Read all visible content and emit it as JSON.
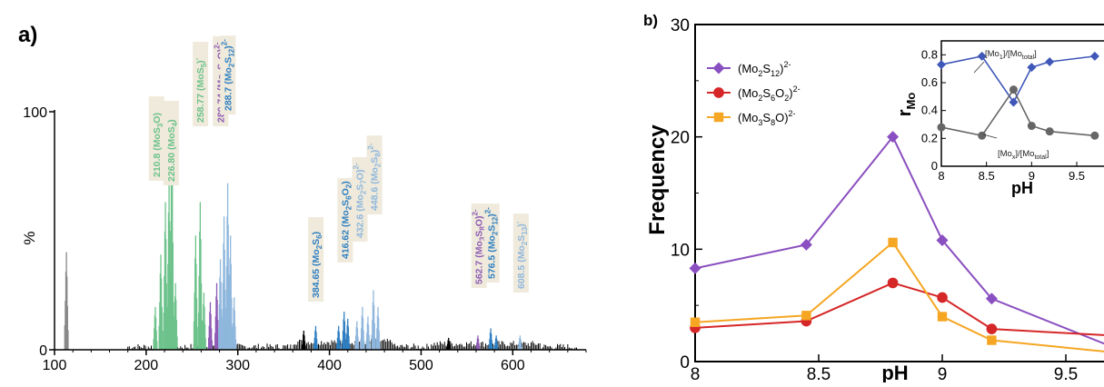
{
  "chart_data": [
    {
      "type": "bar",
      "panel_label": "a)",
      "title": "",
      "xlabel": "",
      "ylabel": "%",
      "xlim": [
        100,
        680
      ],
      "ylim": [
        0,
        100
      ],
      "x_ticks": [
        100,
        200,
        300,
        400,
        500,
        600
      ],
      "y_ticks": [
        0,
        100
      ],
      "colors": {
        "green": "#6cc28a",
        "purple": "#8e5bb5",
        "blue": "#2f7fc1",
        "light_blue": "#8fb7dd",
        "black": "#000000",
        "gray": "#888888"
      },
      "peaks": [
        {
          "x": 113,
          "y": 41,
          "color": "gray"
        },
        {
          "x": 210,
          "y": 18,
          "color": "green"
        },
        {
          "x": 216,
          "y": 40,
          "color": "green"
        },
        {
          "x": 221,
          "y": 62,
          "color": "green"
        },
        {
          "x": 225,
          "y": 72,
          "color": "green"
        },
        {
          "x": 228,
          "y": 100,
          "color": "green"
        },
        {
          "x": 232,
          "y": 28,
          "color": "green"
        },
        {
          "x": 254,
          "y": 48,
          "color": "green"
        },
        {
          "x": 259,
          "y": 62,
          "color": "green"
        },
        {
          "x": 263,
          "y": 24,
          "color": "green"
        },
        {
          "x": 270,
          "y": 20,
          "color": "purple"
        },
        {
          "x": 277,
          "y": 28,
          "color": "purple"
        },
        {
          "x": 281,
          "y": 38,
          "color": "light_blue"
        },
        {
          "x": 285,
          "y": 56,
          "color": "light_blue"
        },
        {
          "x": 289,
          "y": 70,
          "color": "light_blue"
        },
        {
          "x": 292,
          "y": 48,
          "color": "light_blue"
        },
        {
          "x": 296,
          "y": 22,
          "color": "light_blue"
        },
        {
          "x": 372,
          "y": 8,
          "color": "black"
        },
        {
          "x": 385,
          "y": 10,
          "color": "blue"
        },
        {
          "x": 410,
          "y": 10,
          "color": "blue"
        },
        {
          "x": 416,
          "y": 16,
          "color": "blue"
        },
        {
          "x": 420,
          "y": 13,
          "color": "blue"
        },
        {
          "x": 430,
          "y": 12,
          "color": "light_blue"
        },
        {
          "x": 436,
          "y": 18,
          "color": "light_blue"
        },
        {
          "x": 442,
          "y": 14,
          "color": "light_blue"
        },
        {
          "x": 448,
          "y": 25,
          "color": "light_blue"
        },
        {
          "x": 453,
          "y": 18,
          "color": "light_blue"
        },
        {
          "x": 530,
          "y": 5,
          "color": "black"
        },
        {
          "x": 562,
          "y": 6,
          "color": "purple"
        },
        {
          "x": 576,
          "y": 9,
          "color": "blue"
        },
        {
          "x": 582,
          "y": 6,
          "color": "blue"
        },
        {
          "x": 608,
          "y": 6,
          "color": "light_blue"
        }
      ],
      "annotations": [
        {
          "x": 210.8,
          "color": "green",
          "label_value": "210.8",
          "label_species": "(MoS",
          "sub": "3",
          "tail": "O)",
          "sup": ""
        },
        {
          "x": 226.8,
          "color": "green",
          "label_value": "226.80",
          "label_species": "(MoS",
          "sub": "4",
          "tail": ")",
          "sup": ""
        },
        {
          "x": 258.77,
          "color": "green",
          "label_value": "258.77",
          "label_species": "(MoS",
          "sub": "5",
          "tail": ")",
          "sup": "-"
        },
        {
          "x": 280.74,
          "color": "purple",
          "label_value": "280.74",
          "label_species": "(Mo",
          "sub": "2",
          "tail": "S",
          "sub2": "8",
          "tail2": "O)",
          "sup": "2-"
        },
        {
          "x": 288.7,
          "color": "blue",
          "label_value": "288.7",
          "label_species": "(Mo",
          "sub": "2",
          "tail": "S",
          "sub2": "12",
          "tail2": ")",
          "sup": "2-"
        },
        {
          "x": 384.65,
          "color": "blue",
          "label_value": "384.65",
          "label_species": "(Mo",
          "sub": "2",
          "tail": "S",
          "sub2": "6",
          "tail2": ")",
          "sup": ""
        },
        {
          "x": 416.62,
          "color": "blue",
          "label_value": "416.62",
          "label_species": "(Mo",
          "sub": "2",
          "tail": "S",
          "sub2": "6",
          "tail2": "O",
          "sub3": "2",
          "tail3": ")",
          "sup": ""
        },
        {
          "x": 432.6,
          "color": "light_blue",
          "label_value": "432.6",
          "label_species": "(Mo",
          "sub": "2",
          "tail": "S",
          "sub2": "7",
          "tail2": "O)",
          "sup": "2-"
        },
        {
          "x": 448.6,
          "color": "light_blue",
          "label_value": "448.6",
          "label_species": "(Mo",
          "sub": "2",
          "tail": "S",
          "sub2": "8",
          "tail2": ")",
          "sup": "2-"
        },
        {
          "x": 562.7,
          "color": "purple",
          "label_value": "562.7",
          "label_species": "(Mo",
          "sub": "3",
          "tail": "S",
          "sub2": "8",
          "tail2": "O)",
          "sup": "2-"
        },
        {
          "x": 576.5,
          "color": "blue",
          "label_value": "576.5",
          "label_species": "(Mo",
          "sub": "2",
          "tail": "S",
          "sub2": "12",
          "tail2": ")",
          "sup": "2-"
        },
        {
          "x": 608.5,
          "color": "light_blue",
          "label_value": "608.5",
          "label_species": "(Mo",
          "sub": "2",
          "tail": "S",
          "sub2": "13",
          "tail2": ")",
          "sup": "-"
        }
      ]
    },
    {
      "type": "line",
      "panel_label": "b)",
      "title": "",
      "xlabel": "pH",
      "ylabel": "Frequency",
      "xlim": [
        8,
        9.7
      ],
      "ylim": [
        0,
        30
      ],
      "x_ticks": [
        8,
        8.5,
        9,
        9.5
      ],
      "y_ticks": [
        0,
        10,
        20,
        30
      ],
      "x": [
        8,
        8.45,
        8.8,
        9,
        9.2,
        9.7
      ],
      "series": [
        {
          "name_main": "(Mo",
          "name_sub1": "2",
          "name_mid": "S",
          "name_sub2": "12",
          "name_tail": ")",
          "name_sup": "2-",
          "color": "#8a4fc0",
          "marker": "diamond",
          "values": [
            8.3,
            10.4,
            20.0,
            10.8,
            5.6,
            1.2
          ]
        },
        {
          "name_main": "(Mo",
          "name_sub1": "2",
          "name_mid": "S",
          "name_sub2": "6",
          "name_tail": "O",
          "name_sub3": "2",
          "name_tail2": ")",
          "name_sup": "2-",
          "color": "#d62728",
          "marker": "circle",
          "values": [
            3.0,
            3.6,
            7.0,
            5.7,
            2.9,
            2.3
          ]
        },
        {
          "name_main": "(Mo",
          "name_sub1": "3",
          "name_mid": "S",
          "name_sub2": "8",
          "name_tail": "O)",
          "name_sup": "2-",
          "color": "#f5a623",
          "marker": "square",
          "values": [
            3.5,
            4.1,
            10.6,
            4.0,
            1.9,
            0.8
          ]
        }
      ],
      "legend_position": "top-left",
      "inset": {
        "xlabel": "pH",
        "ylabel_main": "r",
        "ylabel_sub": "Mo",
        "xlim": [
          8,
          9.7
        ],
        "ylim": [
          0,
          0.9
        ],
        "x_ticks": [
          8,
          8.5,
          9,
          9.5
        ],
        "y_ticks": [
          0,
          0.2,
          0.4,
          0.6,
          0.8
        ],
        "x": [
          8,
          8.45,
          8.8,
          9,
          9.2,
          9.7
        ],
        "series": [
          {
            "label_a": "[Mo",
            "label_a_sub": "1",
            "label_b": "]/[Mo",
            "label_b_sub": "total",
            "label_c": "]",
            "color": "#3f57b8",
            "marker": "diamond",
            "values": [
              0.73,
              0.79,
              0.46,
              0.71,
              0.75,
              0.79
            ]
          },
          {
            "label_a": "[Mo",
            "label_a_sub": "x",
            "label_b": "]/[Mo",
            "label_b_sub": "total",
            "label_c": "]",
            "color": "#666666",
            "marker": "circle",
            "values": [
              0.28,
              0.22,
              0.55,
              0.29,
              0.25,
              0.22
            ]
          }
        ]
      }
    }
  ]
}
